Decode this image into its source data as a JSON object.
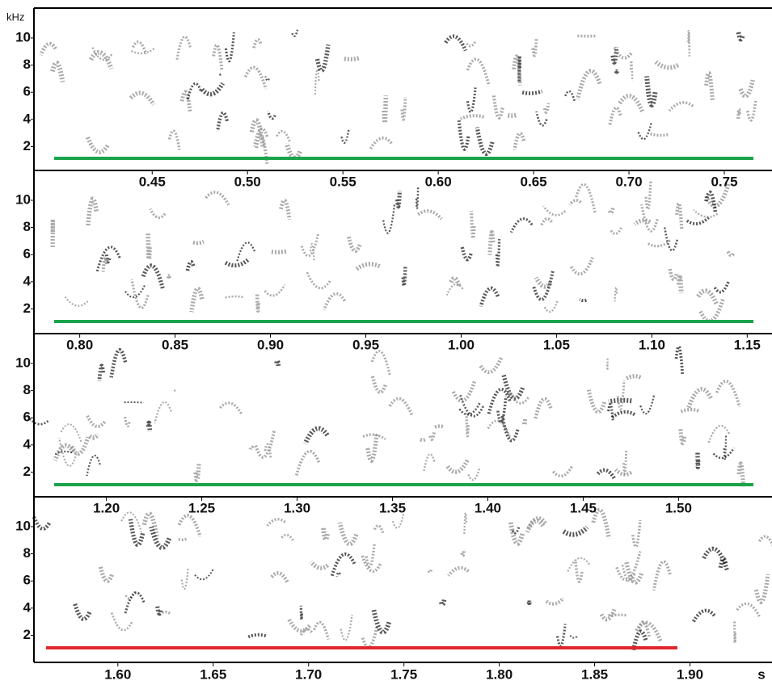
{
  "chart_data": [
    {
      "type": "spectrogram",
      "ylabel": "kHz",
      "ylim": [
        0.3,
        12.2
      ],
      "yticks": [
        2,
        4,
        6,
        8,
        10
      ]
    },
    {
      "type": "spectrogram",
      "ylim": [
        0.3,
        12.2
      ],
      "yticks": [
        2,
        4,
        6,
        8,
        10
      ],
      "xlim": [
        0.388,
        0.775
      ],
      "xticks": [
        {
          "value": 0.45,
          "label": "0.45"
        },
        {
          "value": 0.5,
          "label": "0.50"
        },
        {
          "value": 0.55,
          "label": "0.55"
        },
        {
          "value": 0.6,
          "label": "0.60"
        },
        {
          "value": 0.65,
          "label": "0.65"
        },
        {
          "value": 0.7,
          "label": "0.70"
        },
        {
          "value": 0.75,
          "label": "0.75"
        }
      ]
    },
    {
      "type": "spectrogram",
      "ylim": [
        0.3,
        12.2
      ],
      "yticks": [
        2,
        4,
        6,
        8,
        10
      ],
      "xlim": [
        0.776,
        1.163
      ],
      "xticks": [
        {
          "value": 0.8,
          "label": "0.80"
        },
        {
          "value": 0.85,
          "label": "0.85"
        },
        {
          "value": 0.9,
          "label": "0.90"
        },
        {
          "value": 0.95,
          "label": "0.95"
        },
        {
          "value": 1.0,
          "label": "1.00"
        },
        {
          "value": 1.05,
          "label": "1.05"
        },
        {
          "value": 1.1,
          "label": "1.10"
        },
        {
          "value": 1.15,
          "label": "1.15"
        }
      ]
    },
    {
      "type": "spectrogram",
      "ylim": [
        0.3,
        12.2
      ],
      "yticks": [
        2,
        4,
        6,
        8,
        10
      ],
      "xlim": [
        1.162,
        1.549
      ],
      "xticks": [
        {
          "value": 1.2,
          "label": "1.20"
        },
        {
          "value": 1.25,
          "label": "1.25"
        },
        {
          "value": 1.3,
          "label": "1.30"
        },
        {
          "value": 1.35,
          "label": "1.35"
        },
        {
          "value": 1.4,
          "label": "1.40"
        },
        {
          "value": 1.45,
          "label": "1.45"
        },
        {
          "value": 1.5,
          "label": "1.50"
        }
      ],
      "x2lim": [
        1.556,
        1.943
      ],
      "x2label": "s",
      "x2ticks": [
        {
          "value": 1.6,
          "label": "1.60"
        },
        {
          "value": 1.65,
          "label": "1.65"
        },
        {
          "value": 1.7,
          "label": "1.70"
        },
        {
          "value": 1.75,
          "label": "1.75"
        },
        {
          "value": 1.8,
          "label": "1.80"
        },
        {
          "value": 1.85,
          "label": "1.85"
        },
        {
          "value": 1.9,
          "label": "1.90"
        }
      ]
    }
  ]
}
